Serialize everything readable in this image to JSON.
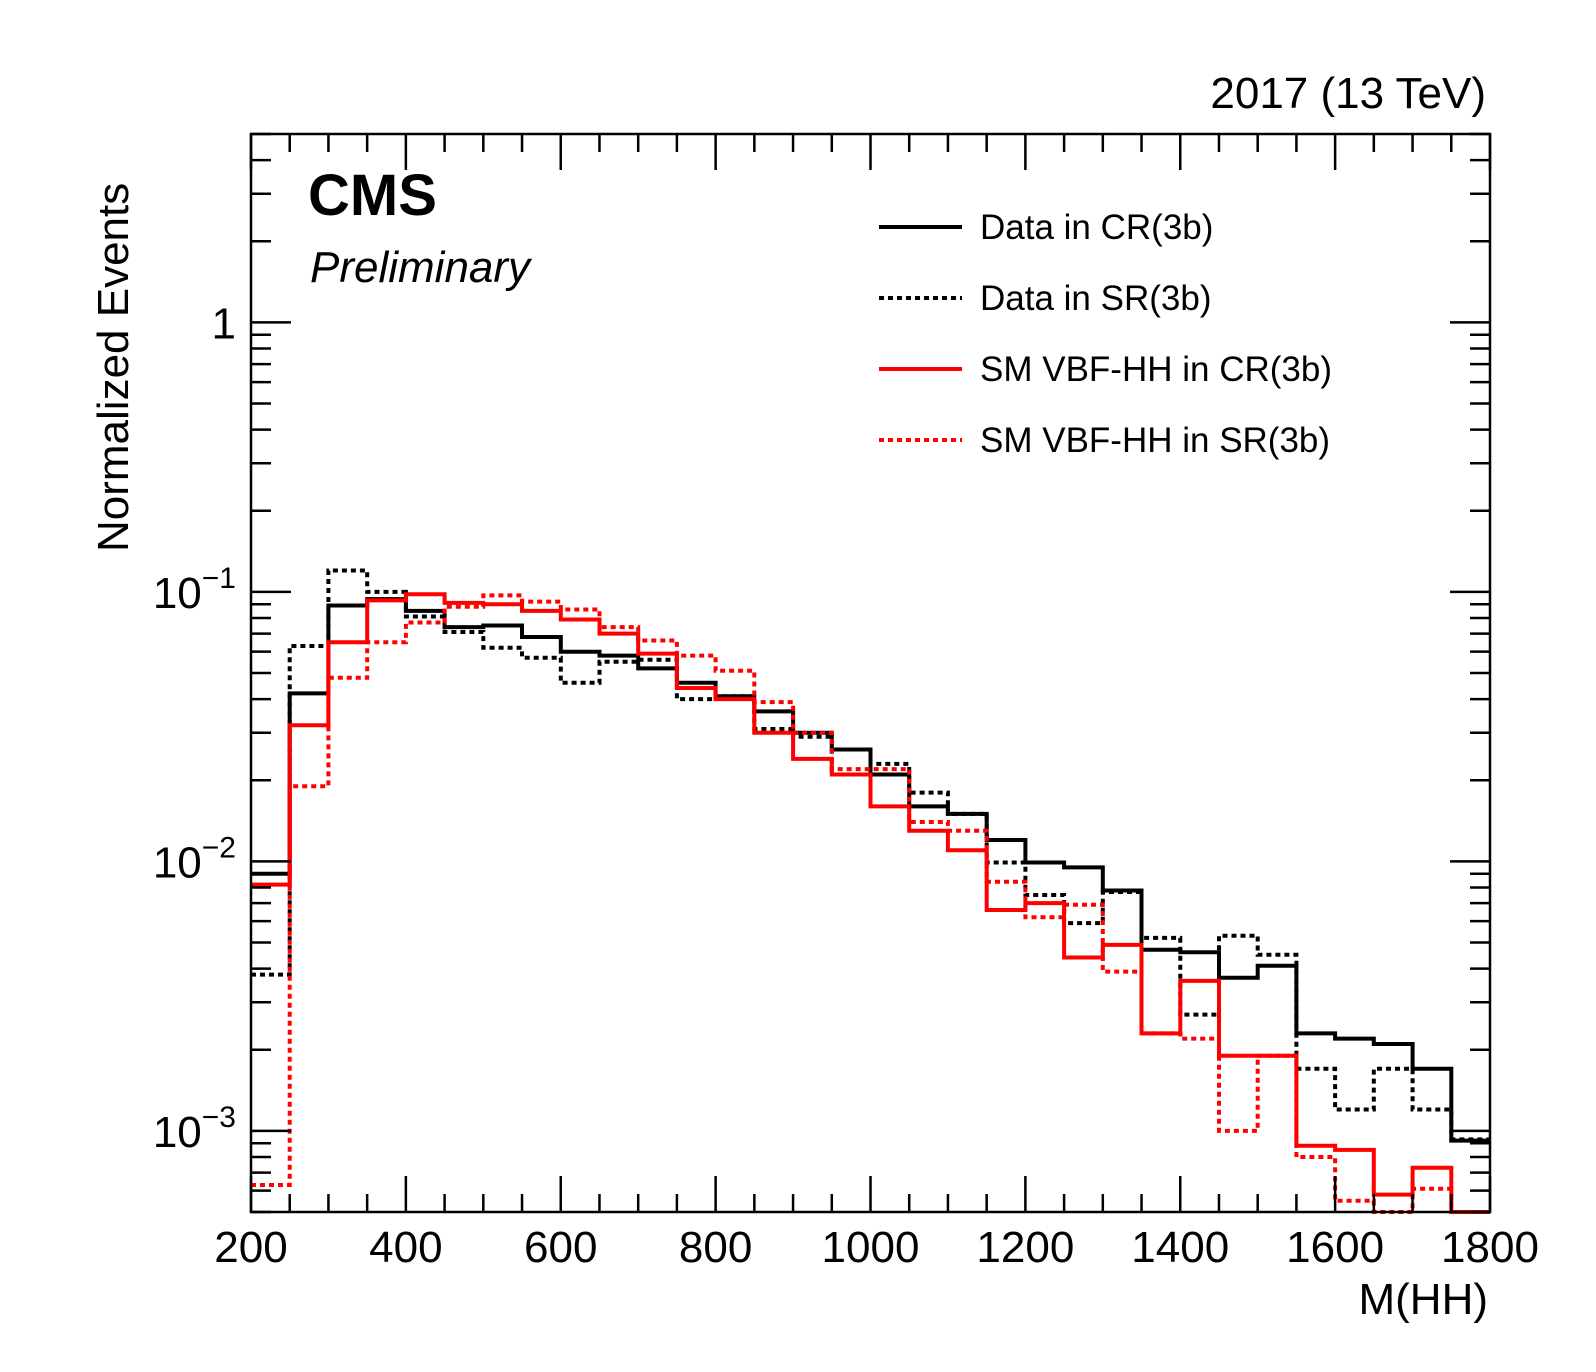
{
  "header": {
    "experiment": "CMS",
    "status": "Preliminary",
    "lumi": "2017 (13 TeV)"
  },
  "chart_data": {
    "type": "line",
    "xlabel": "M(HH)",
    "ylabel": "Normalized Events",
    "xlim": [
      200,
      1800
    ],
    "ylim": [
      0.0005,
      5
    ],
    "yscale": "log",
    "x_ticks": [
      "200",
      "400",
      "600",
      "800",
      "1000",
      "1200",
      "1400",
      "1600",
      "1800"
    ],
    "y_ticks": [
      {
        "value": 0.001,
        "base": "10",
        "exp": "−3"
      },
      {
        "value": 0.01,
        "base": "10",
        "exp": "−2"
      },
      {
        "value": 0.1,
        "base": "10",
        "exp": "−1"
      },
      {
        "value": 1,
        "base": "1",
        "exp": ""
      }
    ],
    "legend_position": "top-right",
    "bin_edges": [
      200,
      250,
      300,
      350,
      400,
      450,
      500,
      550,
      600,
      650,
      700,
      750,
      800,
      850,
      900,
      950,
      1000,
      1050,
      1100,
      1150,
      1200,
      1250,
      1300,
      1350,
      1400,
      1450,
      1500,
      1550,
      1600,
      1650,
      1700,
      1750,
      1800
    ],
    "series": [
      {
        "name": "Data in CR(3b)",
        "color": "#000000",
        "style": "solid",
        "values": [
          0.009,
          0.042,
          0.089,
          0.094,
          0.085,
          0.074,
          0.075,
          0.068,
          0.06,
          0.058,
          0.052,
          0.046,
          0.041,
          0.036,
          0.03,
          0.026,
          0.021,
          0.016,
          0.015,
          0.012,
          0.0099,
          0.0095,
          0.0078,
          0.0047,
          0.0046,
          0.0037,
          0.0041,
          0.0023,
          0.0022,
          0.0021,
          0.0017,
          0.00092
        ]
      },
      {
        "name": "Data in SR(3b)",
        "color": "#000000",
        "style": "dotted",
        "values": [
          0.0038,
          0.063,
          0.12,
          0.1,
          0.081,
          0.071,
          0.062,
          0.057,
          0.046,
          0.055,
          0.056,
          0.04,
          0.041,
          0.031,
          0.029,
          0.021,
          0.023,
          0.018,
          0.015,
          0.0099,
          0.0075,
          0.0059,
          0.0077,
          0.0052,
          0.0027,
          0.0053,
          0.0045,
          0.0017,
          0.0012,
          0.0017,
          0.0012,
          0.00093
        ]
      },
      {
        "name": "SM VBF-HH in CR(3b)",
        "color": "#ff0000",
        "style": "solid",
        "values": [
          0.0082,
          0.032,
          0.065,
          0.093,
          0.098,
          0.091,
          0.09,
          0.085,
          0.079,
          0.07,
          0.059,
          0.044,
          0.04,
          0.03,
          0.024,
          0.021,
          0.016,
          0.013,
          0.011,
          0.0066,
          0.007,
          0.0044,
          0.0049,
          0.0023,
          0.0036,
          0.0019,
          0.0019,
          0.00088,
          0.00085,
          0.00058,
          0.00073,
          0.0005
        ]
      },
      {
        "name": "SM VBF-HH in SR(3b)",
        "color": "#ff0000",
        "style": "dotted",
        "values": [
          0.00063,
          0.019,
          0.048,
          0.065,
          0.077,
          0.088,
          0.097,
          0.092,
          0.086,
          0.074,
          0.066,
          0.058,
          0.051,
          0.039,
          0.03,
          0.022,
          0.022,
          0.014,
          0.013,
          0.0084,
          0.0062,
          0.0069,
          0.0039,
          0.0023,
          0.0022,
          0.001,
          0.0019,
          0.0008,
          0.00055,
          0.00045,
          0.00061,
          0.00048
        ]
      }
    ]
  }
}
